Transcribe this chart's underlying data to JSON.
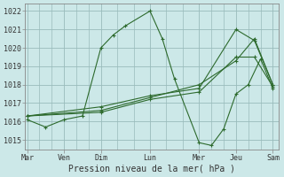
{
  "title": "",
  "xlabel": "Pression niveau de la mer( hPa )",
  "bg_color": "#cce8e8",
  "grid_color": "#99bbbb",
  "line_color": "#2d6a2d",
  "ylim": [
    1014.5,
    1022.4
  ],
  "xlim": [
    -0.05,
    6.15
  ],
  "day_labels": [
    "Mar",
    "Ven",
    "Dim",
    "Lun",
    "Mer",
    "Jeu",
    "Sam"
  ],
  "day_positions": [
    0,
    0.9,
    1.8,
    3.0,
    4.2,
    5.1,
    6.0
  ],
  "series": [
    {
      "x": [
        0,
        0.45,
        0.9,
        1.35,
        1.8,
        2.1,
        2.4,
        3.0,
        3.3,
        3.6,
        4.2,
        4.5,
        4.8,
        5.1,
        5.4,
        5.7,
        6.0
      ],
      "y": [
        1016.1,
        1015.7,
        1016.1,
        1016.3,
        1020.0,
        1020.7,
        1021.2,
        1022.0,
        1020.5,
        1018.3,
        1014.85,
        1014.7,
        1015.6,
        1017.5,
        1018.0,
        1019.4,
        1017.8
      ]
    },
    {
      "x": [
        0,
        1.8,
        3.0,
        4.2,
        5.1,
        5.55,
        6.0
      ],
      "y": [
        1016.3,
        1016.5,
        1017.2,
        1017.6,
        1019.5,
        1019.5,
        1017.9
      ]
    },
    {
      "x": [
        0,
        1.8,
        3.0,
        4.2,
        5.1,
        5.55,
        6.0
      ],
      "y": [
        1016.3,
        1016.6,
        1017.3,
        1018.0,
        1019.3,
        1020.5,
        1018.0
      ]
    },
    {
      "x": [
        0,
        1.8,
        3.0,
        4.2,
        5.1,
        5.55,
        6.0
      ],
      "y": [
        1016.3,
        1016.8,
        1017.4,
        1017.8,
        1021.0,
        1020.4,
        1018.0
      ]
    }
  ],
  "yticks": [
    1015,
    1016,
    1017,
    1018,
    1019,
    1020,
    1021,
    1022
  ],
  "minor_grid_x_count": 3
}
